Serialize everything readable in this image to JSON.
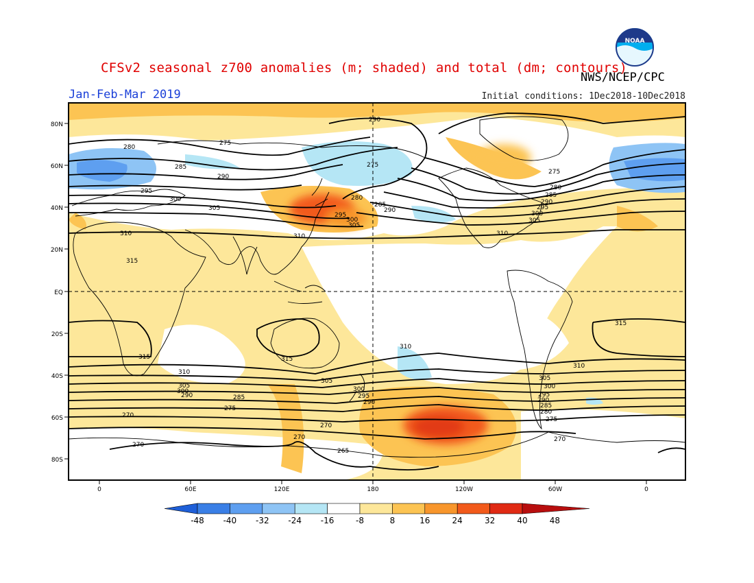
{
  "title": "CFSv2 seasonal z700 anomalies (m; shaded) and total (dm; contours)",
  "agency": "NWS/NCEP/CPC",
  "period": "Jan-Feb-Mar 2019",
  "initial_conditions": "Initial conditions: 1Dec2018-10Dec2018",
  "logo_text": "NOAA",
  "map": {
    "lat_labels": [
      "80N",
      "60N",
      "40N",
      "20N",
      "EQ",
      "20S",
      "40S",
      "60S",
      "80S"
    ],
    "lon_labels": [
      "0",
      "60E",
      "120E",
      "180",
      "120W",
      "60W",
      "0"
    ],
    "contour_labels": [
      {
        "text": "290"
      },
      {
        "text": "275"
      },
      {
        "text": "280"
      },
      {
        "text": "285"
      },
      {
        "text": "275"
      },
      {
        "text": "290"
      },
      {
        "text": "295"
      },
      {
        "text": "300"
      },
      {
        "text": "305"
      },
      {
        "text": "280"
      },
      {
        "text": "285"
      },
      {
        "text": "290"
      },
      {
        "text": "295"
      },
      {
        "text": "300"
      },
      {
        "text": "305"
      },
      {
        "text": "275"
      },
      {
        "text": "280"
      },
      {
        "text": "285"
      },
      {
        "text": "290"
      },
      {
        "text": "295"
      },
      {
        "text": "300"
      },
      {
        "text": "305"
      },
      {
        "text": "310"
      },
      {
        "text": "310"
      },
      {
        "text": "310"
      },
      {
        "text": "315"
      },
      {
        "text": "315"
      },
      {
        "text": "315"
      },
      {
        "text": "315"
      },
      {
        "text": "310"
      },
      {
        "text": "310"
      },
      {
        "text": "310"
      },
      {
        "text": "305"
      },
      {
        "text": "300"
      },
      {
        "text": "290"
      },
      {
        "text": "285"
      },
      {
        "text": "275"
      },
      {
        "text": "270"
      },
      {
        "text": "305"
      },
      {
        "text": "300"
      },
      {
        "text": "295"
      },
      {
        "text": "290"
      },
      {
        "text": "305"
      },
      {
        "text": "300"
      },
      {
        "text": "295"
      },
      {
        "text": "290"
      },
      {
        "text": "285"
      },
      {
        "text": "280"
      },
      {
        "text": "275"
      },
      {
        "text": "270"
      },
      {
        "text": "270"
      },
      {
        "text": "270"
      },
      {
        "text": "270"
      },
      {
        "text": "265"
      },
      {
        "text": "275"
      }
    ]
  },
  "colorbar": {
    "labels": [
      "-48",
      "-40",
      "-32",
      "-24",
      "-16",
      "-8",
      "8",
      "16",
      "24",
      "32",
      "40",
      "48"
    ],
    "colors": [
      "#1e5fd8",
      "#3a7fe6",
      "#5e9ff0",
      "#8ec4f5",
      "#b5e6f5",
      "#ffffff",
      "#fde79a",
      "#fcc453",
      "#f8962c",
      "#f25a1b",
      "#e02a14",
      "#b80e0e"
    ]
  }
}
